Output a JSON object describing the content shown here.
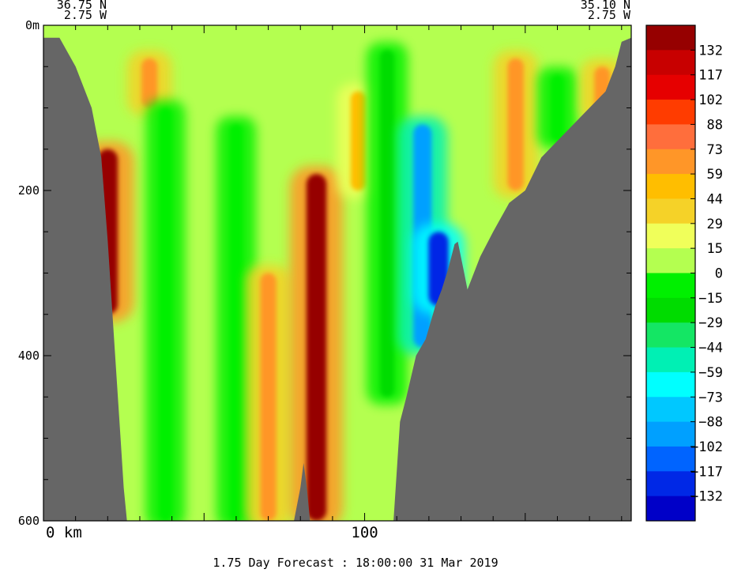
{
  "chart_data": {
    "type": "heatmap",
    "title": "",
    "caption": "1.75 Day Forecast : 18:00:00  31 Mar 2019",
    "start_point": {
      "lat": "36.75 N",
      "lon": "2.75 W"
    },
    "end_point": {
      "lat": "35.10 N",
      "lon": "2.75 W"
    },
    "x_unit": "km",
    "xlim": [
      0,
      183
    ],
    "x_ticks": [
      0,
      100
    ],
    "x_tick_labels": [
      "0 km",
      "100"
    ],
    "y_unit": "m",
    "ylim": [
      0,
      600
    ],
    "y_inverted": true,
    "y_ticks": [
      0,
      200,
      400,
      600
    ],
    "y_tick_labels": [
      "0m",
      "200",
      "400",
      "600"
    ],
    "colorbar": {
      "levels": [
        132,
        117,
        102,
        88,
        73,
        59,
        44,
        29,
        15,
        0,
        -15,
        -29,
        -44,
        -59,
        -73,
        -88,
        -102,
        -117,
        -132
      ],
      "colors": [
        "#960000",
        "#c80000",
        "#e60000",
        "#ff3c00",
        "#ff6e3c",
        "#ff9628",
        "#ffbe00",
        "#f5d228",
        "#f0ff5a",
        "#b4ff50",
        "#00f000",
        "#00dc00",
        "#14e664",
        "#00f0b4",
        "#00ffff",
        "#00c8ff",
        "#00a0ff",
        "#0064ff",
        "#0028e6",
        "#0000c8"
      ]
    },
    "grid": false,
    "seafloor_depth": [
      [
        0,
        15
      ],
      [
        5,
        15
      ],
      [
        10,
        50
      ],
      [
        15,
        100
      ],
      [
        18,
        160
      ],
      [
        20,
        260
      ],
      [
        22,
        380
      ],
      [
        23,
        440
      ],
      [
        24,
        500
      ],
      [
        25,
        560
      ],
      [
        26,
        600
      ],
      [
        78,
        600
      ],
      [
        80,
        560
      ],
      [
        81,
        530
      ],
      [
        82,
        560
      ],
      [
        83,
        600
      ],
      [
        109,
        600
      ],
      [
        110,
        540
      ],
      [
        111,
        480
      ],
      [
        113,
        450
      ],
      [
        116,
        400
      ],
      [
        119,
        380
      ],
      [
        122,
        340
      ],
      [
        124,
        320
      ],
      [
        126,
        295
      ],
      [
        128,
        265
      ],
      [
        129,
        262
      ],
      [
        131,
        300
      ],
      [
        132,
        320
      ],
      [
        134,
        300
      ],
      [
        136,
        280
      ],
      [
        140,
        250
      ],
      [
        145,
        215
      ],
      [
        150,
        200
      ],
      [
        155,
        160
      ],
      [
        160,
        140
      ],
      [
        165,
        120
      ],
      [
        170,
        100
      ],
      [
        175,
        80
      ],
      [
        178,
        50
      ],
      [
        180,
        20
      ],
      [
        183,
        15
      ]
    ],
    "features": [
      {
        "x": 20,
        "depth": [
          150,
          350
        ],
        "value": 132
      },
      {
        "x": 33,
        "depth": [
          40,
          100
        ],
        "value": 59
      },
      {
        "x": 38,
        "depth": [
          100,
          600
        ],
        "value": -15
      },
      {
        "x": 60,
        "depth": [
          120,
          600
        ],
        "value": -15
      },
      {
        "x": 70,
        "depth": [
          300,
          600
        ],
        "value": 59
      },
      {
        "x": 85,
        "depth": [
          180,
          600
        ],
        "value": 132
      },
      {
        "x": 98,
        "depth": [
          80,
          200
        ],
        "value": 44
      },
      {
        "x": 107,
        "depth": [
          30,
          450
        ],
        "value": -29
      },
      {
        "x": 118,
        "depth": [
          120,
          390
        ],
        "value": -102
      },
      {
        "x": 123,
        "depth": [
          250,
          340
        ],
        "value": -132
      },
      {
        "x": 147,
        "depth": [
          40,
          200
        ],
        "value": 59
      },
      {
        "x": 160,
        "depth": [
          60,
          140
        ],
        "value": -15
      },
      {
        "x": 174,
        "depth": [
          50,
          110
        ],
        "value": 59
      }
    ]
  }
}
